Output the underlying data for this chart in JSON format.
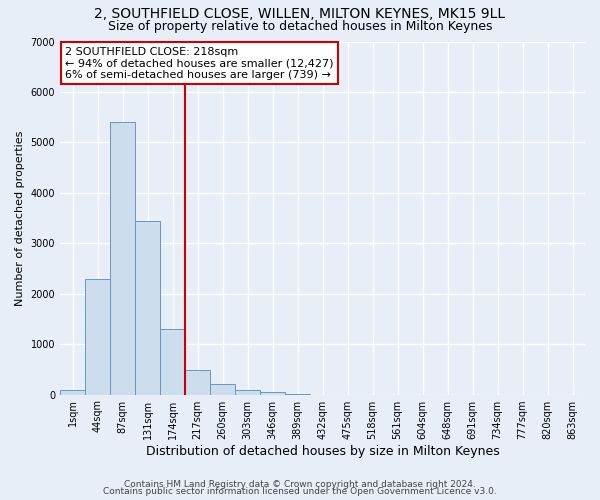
{
  "title": "2, SOUTHFIELD CLOSE, WILLEN, MILTON KEYNES, MK15 9LL",
  "subtitle": "Size of property relative to detached houses in Milton Keynes",
  "xlabel": "Distribution of detached houses by size in Milton Keynes",
  "ylabel": "Number of detached properties",
  "categories": [
    "1sqm",
    "44sqm",
    "87sqm",
    "131sqm",
    "174sqm",
    "217sqm",
    "260sqm",
    "303sqm",
    "346sqm",
    "389sqm",
    "432sqm",
    "475sqm",
    "518sqm",
    "561sqm",
    "604sqm",
    "648sqm",
    "691sqm",
    "734sqm",
    "777sqm",
    "820sqm",
    "863sqm"
  ],
  "values": [
    100,
    2300,
    5400,
    3450,
    1300,
    480,
    200,
    90,
    60,
    15,
    0,
    0,
    0,
    0,
    0,
    0,
    0,
    0,
    0,
    0,
    0
  ],
  "bar_color": "#ccdded",
  "bar_edge_color": "#6699bb",
  "ylim": [
    0,
    7000
  ],
  "yticks": [
    0,
    1000,
    2000,
    3000,
    4000,
    5000,
    6000,
    7000
  ],
  "property_line_index": 5,
  "property_line_color": "#cc0000",
  "annotation_line1": "2 SOUTHFIELD CLOSE: 218sqm",
  "annotation_line2": "← 94% of detached houses are smaller (12,427)",
  "annotation_line3": "6% of semi-detached houses are larger (739) →",
  "annotation_box_color": "#ffffff",
  "annotation_box_edge_color": "#cc0000",
  "footer1": "Contains HM Land Registry data © Crown copyright and database right 2024.",
  "footer2": "Contains public sector information licensed under the Open Government Licence v3.0.",
  "background_color": "#e8eef8",
  "grid_color": "#ffffff",
  "title_fontsize": 10,
  "subtitle_fontsize": 9,
  "xlabel_fontsize": 9,
  "ylabel_fontsize": 8,
  "tick_fontsize": 7,
  "annotation_fontsize": 8,
  "footer_fontsize": 6.5
}
